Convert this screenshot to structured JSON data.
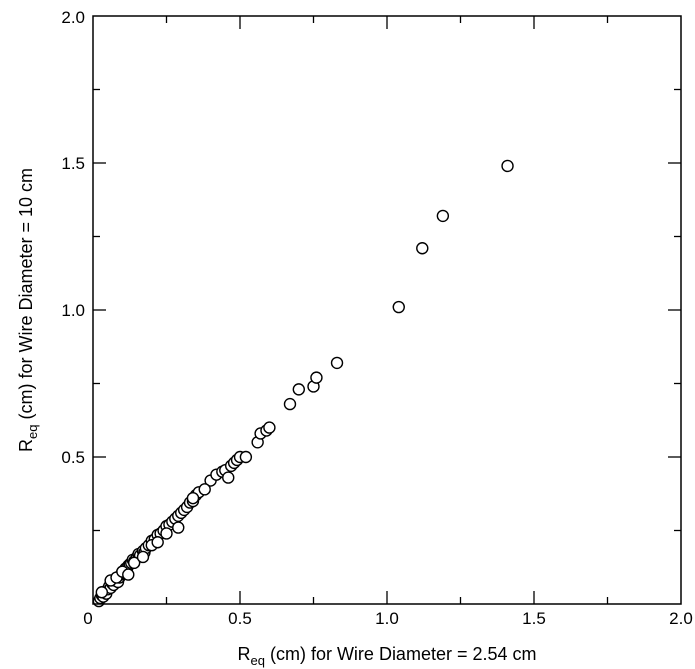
{
  "chart_data": {
    "type": "scatter",
    "xlabel_main": "R",
    "xlabel_sub": "eq",
    "xlabel_rest": " (cm) for Wire Diameter = 2.54 cm",
    "ylabel_main": "R",
    "ylabel_sub": "eq",
    "ylabel_rest": " (cm) for Wire Diameter = 10 cm",
    "xlim": [
      0,
      2.0
    ],
    "ylim": [
      0,
      2.0
    ],
    "xticks": [
      {
        "value": 0,
        "label": "0"
      },
      {
        "value": 0.5,
        "label": "0.5"
      },
      {
        "value": 1.0,
        "label": "1.0"
      },
      {
        "value": 1.5,
        "label": "1.5"
      },
      {
        "value": 2.0,
        "label": "2.0"
      }
    ],
    "yticks": [
      {
        "value": 0.5,
        "label": "0.5"
      },
      {
        "value": 1.0,
        "label": "1.0"
      },
      {
        "value": 1.5,
        "label": "1.5"
      },
      {
        "value": 2.0,
        "label": "2.0"
      }
    ],
    "minor_ticks": [
      0.25,
      0.75,
      1.25,
      1.75
    ],
    "grid": false,
    "marker": "open-circle",
    "x": [
      0.02,
      0.025,
      0.03,
      0.035,
      0.04,
      0.045,
      0.05,
      0.055,
      0.06,
      0.065,
      0.07,
      0.075,
      0.08,
      0.085,
      0.09,
      0.095,
      0.1,
      0.105,
      0.11,
      0.115,
      0.12,
      0.125,
      0.13,
      0.135,
      0.14,
      0.15,
      0.155,
      0.16,
      0.17,
      0.175,
      0.18,
      0.19,
      0.2,
      0.21,
      0.22,
      0.23,
      0.24,
      0.25,
      0.26,
      0.27,
      0.28,
      0.29,
      0.3,
      0.31,
      0.32,
      0.33,
      0.34,
      0.35,
      0.36,
      0.4,
      0.42,
      0.44,
      0.45,
      0.47,
      0.48,
      0.49,
      0.5,
      0.52,
      0.03,
      0.06,
      0.08,
      0.1,
      0.12,
      0.14,
      0.17,
      0.2,
      0.22,
      0.25,
      0.29,
      0.34,
      0.38,
      0.46,
      0.56,
      0.57,
      0.59,
      0.6,
      0.67,
      0.7,
      0.75,
      0.76,
      0.83,
      1.04,
      1.12,
      1.19,
      1.41
    ],
    "y": [
      0.01,
      0.02,
      0.03,
      0.025,
      0.04,
      0.035,
      0.05,
      0.06,
      0.055,
      0.07,
      0.065,
      0.08,
      0.085,
      0.075,
      0.09,
      0.1,
      0.11,
      0.105,
      0.12,
      0.115,
      0.13,
      0.135,
      0.14,
      0.15,
      0.145,
      0.16,
      0.17,
      0.165,
      0.18,
      0.175,
      0.19,
      0.2,
      0.215,
      0.22,
      0.235,
      0.24,
      0.25,
      0.265,
      0.27,
      0.28,
      0.29,
      0.3,
      0.31,
      0.32,
      0.33,
      0.345,
      0.35,
      0.37,
      0.38,
      0.42,
      0.44,
      0.45,
      0.455,
      0.47,
      0.48,
      0.49,
      0.5,
      0.5,
      0.04,
      0.08,
      0.09,
      0.11,
      0.1,
      0.14,
      0.16,
      0.2,
      0.21,
      0.24,
      0.26,
      0.36,
      0.39,
      0.43,
      0.55,
      0.58,
      0.59,
      0.6,
      0.68,
      0.73,
      0.74,
      0.77,
      0.82,
      1.01,
      1.21,
      1.32,
      1.49
    ]
  }
}
